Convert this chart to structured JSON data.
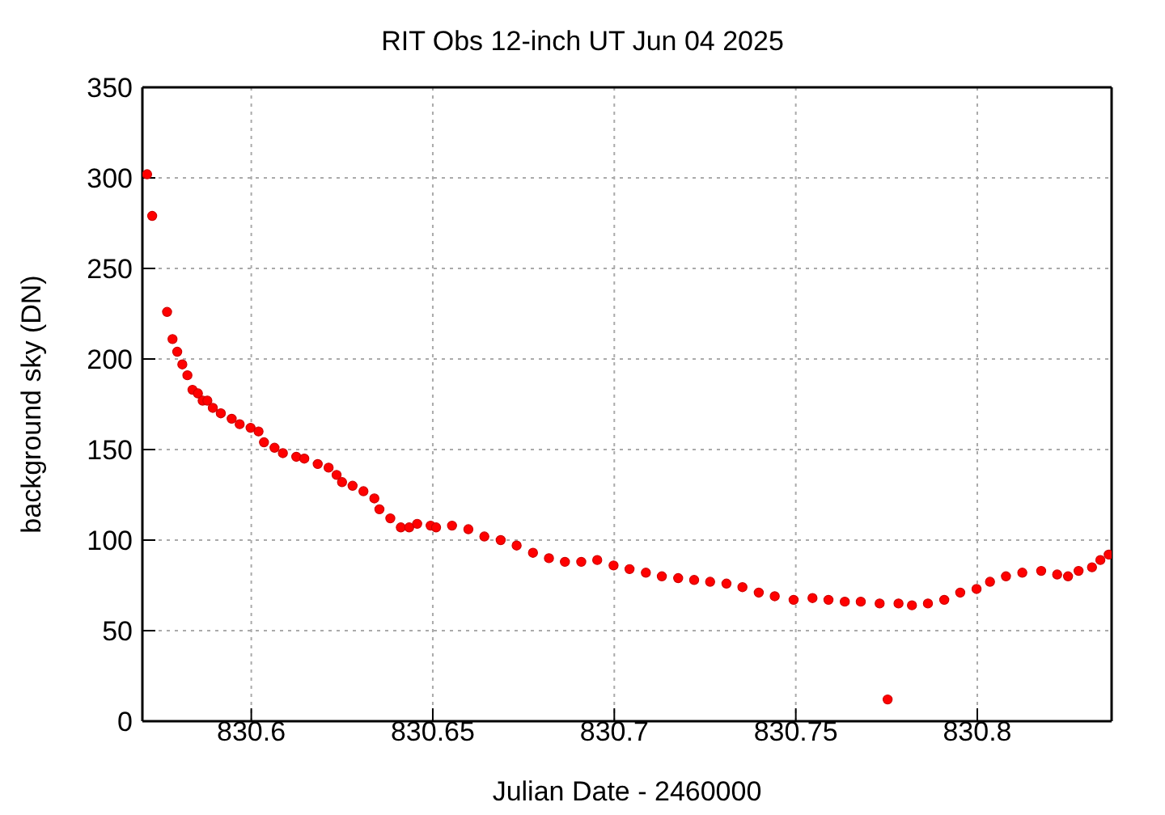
{
  "chart_data": {
    "type": "scatter",
    "title": "RIT Obs 12-inch UT Jun 04 2025",
    "xlabel": "Julian Date - 2460000",
    "ylabel": "background sky (DN)",
    "x": [
      830.5713,
      830.5727,
      830.5768,
      830.5783,
      830.5796,
      830.581,
      830.5824,
      830.5838,
      830.5853,
      830.5866,
      830.5879,
      830.5894,
      830.5916,
      830.5946,
      830.5968,
      830.5998,
      830.602,
      830.6035,
      830.6064,
      830.6087,
      830.6124,
      830.6146,
      830.6183,
      830.6213,
      830.6235,
      830.625,
      830.6279,
      830.6309,
      830.6339,
      830.6353,
      830.6383,
      830.6412,
      830.6435,
      830.6457,
      830.6494,
      830.6509,
      830.6553,
      830.6598,
      830.6642,
      830.6687,
      830.6731,
      830.6776,
      830.682,
      830.6864,
      830.6909,
      830.6953,
      830.6998,
      830.7042,
      830.7087,
      830.7131,
      830.7176,
      830.722,
      830.7264,
      830.7309,
      830.7353,
      830.7398,
      830.7442,
      830.7494,
      830.7546,
      830.759,
      830.7635,
      830.7679,
      830.7731,
      830.7753,
      830.7783,
      830.782,
      830.7864,
      830.7909,
      830.7953,
      830.7998,
      830.8035,
      830.8079,
      830.8124,
      830.8176,
      830.822,
      830.825,
      830.8279,
      830.8316,
      830.8339,
      830.8362
    ],
    "values": [
      302,
      279,
      226,
      211,
      204,
      197,
      191,
      183,
      181,
      177,
      177,
      173,
      170,
      167,
      164,
      162,
      160,
      154,
      151,
      148,
      146,
      145,
      142,
      140,
      136,
      132,
      130,
      127,
      123,
      117,
      112,
      107,
      107,
      109,
      108,
      107,
      108,
      106,
      102,
      100,
      97,
      93,
      90,
      88,
      88,
      89,
      86,
      84,
      82,
      80,
      79,
      78,
      77,
      76,
      74,
      71,
      69,
      67,
      68,
      67,
      66,
      66,
      65,
      12,
      65,
      64,
      65,
      67,
      71,
      73,
      77,
      80,
      82,
      83,
      81,
      80,
      83,
      85,
      89,
      92
    ],
    "color": "#ff0000",
    "marker": "circle",
    "xlim": [
      830.57,
      830.837
    ],
    "xticks": [
      830.6,
      830.65,
      830.7,
      830.75,
      830.8
    ],
    "ylim": [
      0,
      350
    ],
    "yticks": [
      0,
      50,
      100,
      150,
      200,
      250,
      300,
      350
    ],
    "grid": true,
    "legend": false
  }
}
